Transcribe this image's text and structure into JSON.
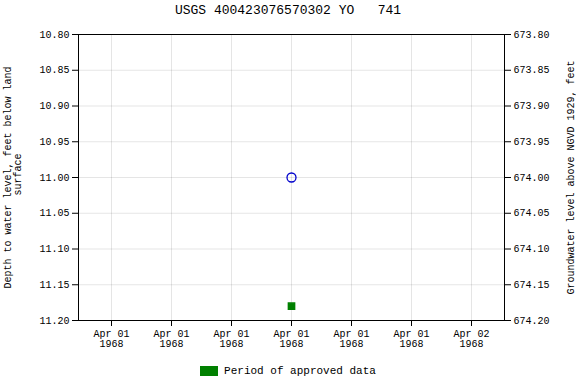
{
  "chart_data": {
    "type": "scatter",
    "title": "USGS 400423076570302 YO   741",
    "ylabel": "Depth to water level, feet below land\n surface",
    "y2label": "Groundwater level above NGVD 1929, feet",
    "categories": [
      "Apr 01\n1968",
      "Apr 01\n1968",
      "Apr 01\n1968",
      "Apr 01\n1968",
      "Apr 01\n1968",
      "Apr 01\n1968",
      "Apr 02\n1968"
    ],
    "ylim": [
      11.2,
      10.8
    ],
    "yticks": [
      {
        "value": 10.8,
        "label": "10.80"
      },
      10.85,
      {
        "value": 10.9,
        "label": "10.90"
      },
      10.95,
      {
        "value": 11.0,
        "label": "11.00"
      },
      11.05,
      {
        "value": 11.1,
        "label": "11.10"
      },
      11.15,
      {
        "value": 11.2,
        "label": "11.20"
      }
    ],
    "y2lim": [
      674.2,
      673.8
    ],
    "y2ticks": [
      {
        "value": 674.2,
        "label": "674.20"
      },
      674.15,
      {
        "value": 674.1,
        "label": "674.10"
      },
      674.05,
      {
        "value": 674.0,
        "label": "674.00"
      },
      673.95,
      {
        "value": 673.9,
        "label": "673.90"
      },
      673.85,
      {
        "value": 673.8,
        "label": "673.80"
      }
    ],
    "grid": true,
    "legend": "bottom",
    "series": [
      {
        "color": "#0000cc",
        "marker": "circle-open",
        "values": [
          null,
          null,
          null,
          11.0,
          null,
          null,
          null
        ]
      },
      {
        "name": "Period of approved data",
        "color": "#008000",
        "marker": "square",
        "values": [
          null,
          null,
          null,
          11.18,
          null,
          null,
          null
        ]
      }
    ]
  }
}
